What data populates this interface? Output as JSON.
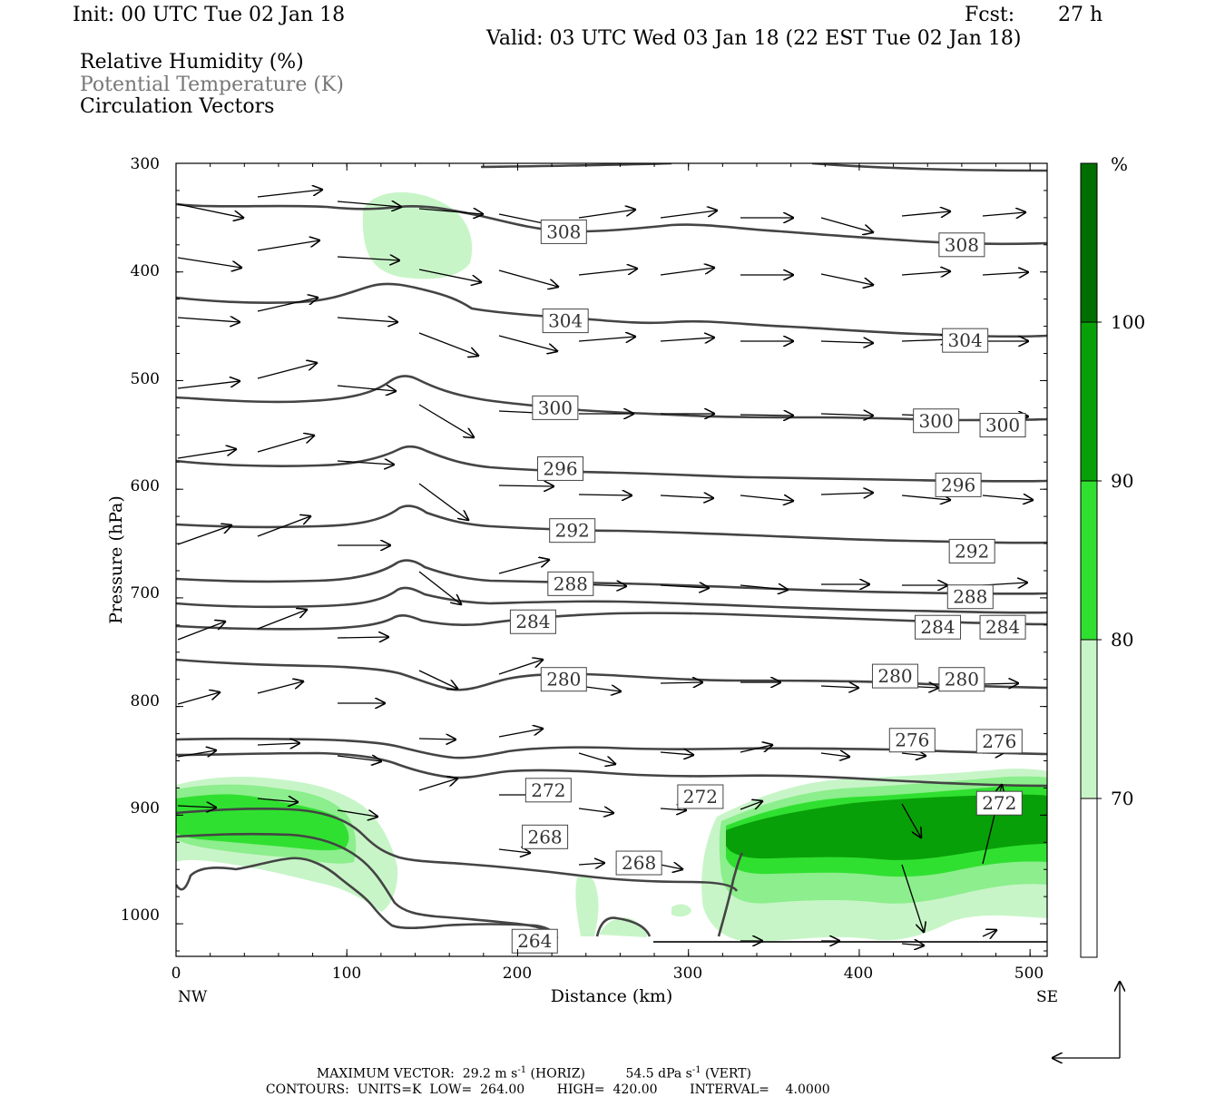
{
  "header": {
    "init": "Init: 00 UTC Tue 02 Jan 18",
    "fcst_label": "Fcst:",
    "fcst_value": "27 h",
    "valid": "Valid: 03 UTC Wed 03 Jan 18 (22 EST Tue 02 Jan 18)",
    "fields": [
      "Relative Humidity (%)",
      "Potential Temperature (K)",
      "Circulation Vectors"
    ]
  },
  "colors": {
    "rh70": "#c8f5c8",
    "rh80": "#8cee8c",
    "rh90": "#30e030",
    "rh100": "#08a008",
    "rh_top": "#006f00",
    "contour": "#444444",
    "field2_text": "#777777"
  },
  "chart_data": {
    "type": "cross-section",
    "xlabel": "Distance (km)",
    "ylabel": "Pressure (hPa)",
    "xlim": [
      0,
      510
    ],
    "ylim": [
      1030,
      300
    ],
    "x_ticks": [
      "0",
      "100",
      "200",
      "300",
      "400",
      "500"
    ],
    "x_end_labels": [
      "NW",
      "SE"
    ],
    "y_ticks": [
      "300",
      "400",
      "500",
      "600",
      "700",
      "800",
      "900",
      "1000"
    ],
    "colorbar": {
      "unit": "%",
      "levels": [
        70,
        80,
        90,
        100
      ],
      "labels": [
        "70",
        "80",
        "90",
        "100"
      ]
    },
    "theta_contour_labels": [
      {
        "value": "308",
        "x": 227,
        "p": 363
      },
      {
        "value": "308",
        "x": 460,
        "p": 375
      },
      {
        "value": "304",
        "x": 228,
        "p": 445
      },
      {
        "value": "304",
        "x": 462,
        "p": 463
      },
      {
        "value": "300",
        "x": 222,
        "p": 525
      },
      {
        "value": "300",
        "x": 445,
        "p": 537
      },
      {
        "value": "300",
        "x": 484,
        "p": 541
      },
      {
        "value": "296",
        "x": 225,
        "p": 581
      },
      {
        "value": "296",
        "x": 458,
        "p": 596
      },
      {
        "value": "292",
        "x": 232,
        "p": 638
      },
      {
        "value": "292",
        "x": 466,
        "p": 657
      },
      {
        "value": "288",
        "x": 231,
        "p": 687
      },
      {
        "value": "288",
        "x": 465,
        "p": 699
      },
      {
        "value": "284",
        "x": 209,
        "p": 722
      },
      {
        "value": "284",
        "x": 446,
        "p": 727
      },
      {
        "value": "284",
        "x": 484,
        "p": 727
      },
      {
        "value": "280",
        "x": 227,
        "p": 775
      },
      {
        "value": "280",
        "x": 421,
        "p": 772
      },
      {
        "value": "280",
        "x": 460,
        "p": 775
      },
      {
        "value": "276",
        "x": 431,
        "p": 831
      },
      {
        "value": "276",
        "x": 482,
        "p": 832
      },
      {
        "value": "272",
        "x": 218,
        "p": 877
      },
      {
        "value": "272",
        "x": 307,
        "p": 883
      },
      {
        "value": "272",
        "x": 482,
        "p": 889
      },
      {
        "value": "268",
        "x": 216,
        "p": 920
      },
      {
        "value": "268",
        "x": 271,
        "p": 944
      },
      {
        "value": "264",
        "x": 210,
        "p": 1016
      }
    ],
    "legend_notes": {
      "max_vector_label": "MAXIMUM VECTOR:",
      "horiz_value": "29.2 m s",
      "horiz_unit": "(HORIZ)",
      "vert_value": "54.5 dPa s",
      "vert_unit": "(VERT)",
      "exp": "-1",
      "contours_label": "CONTOURS:",
      "units": "UNITS=K",
      "low": "LOW=",
      "low_value": "264.00",
      "high": "HIGH=",
      "high_value": "420.00",
      "interval": "INTERVAL=",
      "interval_value": "4.0000"
    }
  }
}
